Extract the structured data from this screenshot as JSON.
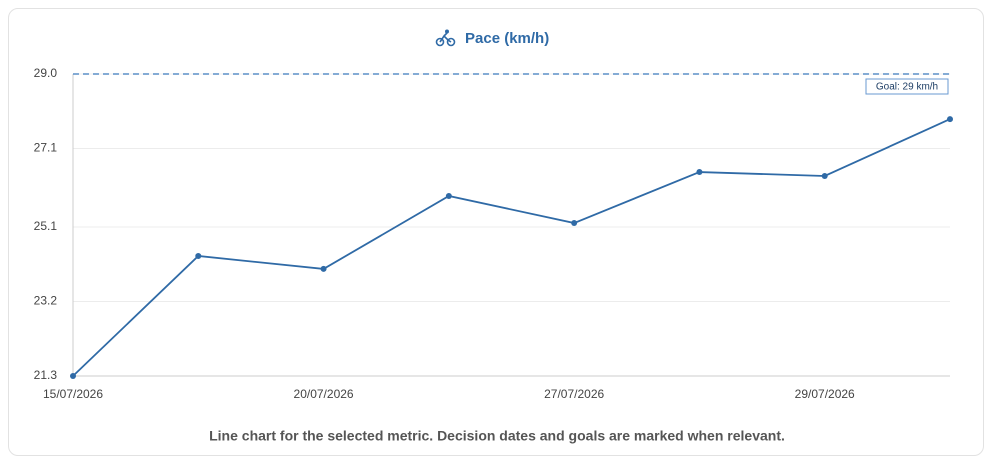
{
  "chart_data": {
    "type": "line",
    "title": "Pace (km/h)",
    "caption": "Line chart for the selected metric. Decision dates and goals are marked when relevant.",
    "categories": [
      "15/07/2026",
      null,
      "20/07/2026",
      null,
      "27/07/2026",
      null,
      "29/07/2026",
      null
    ],
    "values": [
      21.3,
      24.36,
      24.03,
      25.89,
      25.2,
      26.5,
      26.4,
      27.85
    ],
    "color": "#2f6aa6",
    "ylim": [
      21.3,
      29.0
    ],
    "yticks": [
      21.3,
      23.2,
      25.1,
      27.1,
      {
        "value": 29.0,
        "label": "29.0"
      }
    ],
    "grid": true,
    "goal": {
      "value": 29,
      "label": "Goal: 29 km/h"
    }
  }
}
